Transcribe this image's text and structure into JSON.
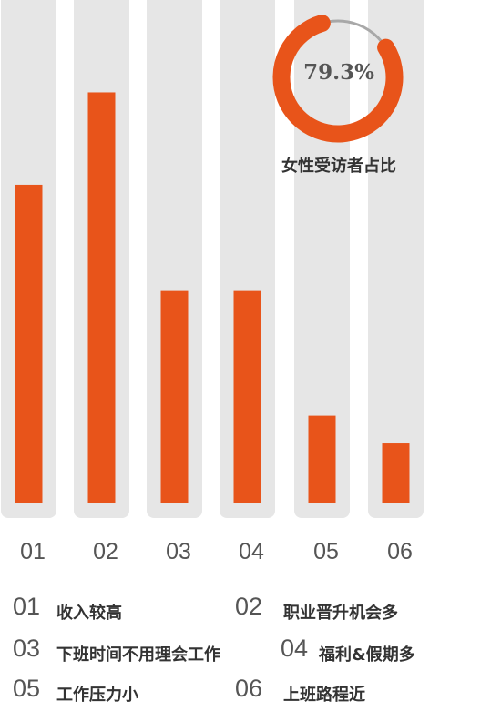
{
  "chart_data": {
    "type": "bar",
    "categories": [
      "01",
      "02",
      "03",
      "04",
      "05",
      "06"
    ],
    "values": [
      69,
      89,
      46,
      46,
      19,
      13
    ],
    "ylim": [
      0,
      109
    ],
    "colors": {
      "bar": "#E8541A",
      "track": "#E6E6E6",
      "ring_bg": "#A8A8A8",
      "text": "#555555"
    }
  },
  "donut": {
    "percent_label": "79.3%",
    "value": 79.3,
    "caption": "女性受访者占比"
  },
  "legend": [
    {
      "num": "01",
      "label": "收入较高"
    },
    {
      "num": "02",
      "label": "职业晋升机会多"
    },
    {
      "num": "03",
      "label": "下班时间不用理会工作"
    },
    {
      "num": "04",
      "label": "福利&假期多"
    },
    {
      "num": "05",
      "label": "工作压力小"
    },
    {
      "num": "06",
      "label": "上班路程近"
    }
  ]
}
